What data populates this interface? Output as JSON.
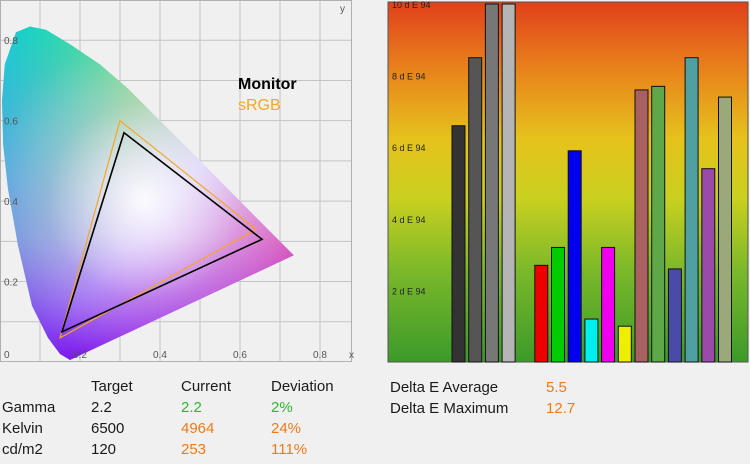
{
  "chart_data": [
    {
      "type": "chromaticity",
      "x_ticks": [
        "0.2",
        "0.4",
        "0.6",
        "0.8"
      ],
      "x_origin_label": "0",
      "x_axis_label": "x",
      "y_ticks": [
        "0.2",
        "0.4",
        "0.6",
        "0.8"
      ],
      "y_axis_label": "y",
      "xlim": [
        0,
        0.88
      ],
      "ylim": [
        0,
        0.9
      ],
      "grid": true,
      "legend": [
        {
          "name": "Monitor",
          "color": "#000000"
        },
        {
          "name": "sRGB",
          "color": "#f5a623"
        }
      ],
      "gamuts": {
        "Monitor": [
          [
            0.655,
            0.305
          ],
          [
            0.31,
            0.57
          ],
          [
            0.155,
            0.075
          ]
        ],
        "sRGB": [
          [
            0.64,
            0.33
          ],
          [
            0.3,
            0.6
          ],
          [
            0.15,
            0.06
          ]
        ]
      }
    },
    {
      "type": "bar",
      "y_ticks": [
        "2 d E 94",
        "4 d E 94",
        "6 d E 94",
        "8 d E 94",
        "10 d E 94"
      ],
      "ylim": [
        0,
        10
      ],
      "background": "gradient green-yellow-orange-red",
      "series": [
        {
          "value": 6.6,
          "color": "#333333"
        },
        {
          "value": 8.5,
          "color": "#555555"
        },
        {
          "value": 10,
          "color": "#777777"
        },
        {
          "value": 10,
          "color": "#b5b5b5"
        },
        {
          "value": 2.7,
          "color": "#ee0000"
        },
        {
          "value": 3.2,
          "color": "#00cc00"
        },
        {
          "value": 5.9,
          "color": "#0000ee"
        },
        {
          "value": 1.2,
          "color": "#00eeee"
        },
        {
          "value": 3.2,
          "color": "#ee00ee"
        },
        {
          "value": 1.0,
          "color": "#eeee00"
        },
        {
          "value": 7.6,
          "color": "#a86060"
        },
        {
          "value": 7.7,
          "color": "#5ea84a"
        },
        {
          "value": 2.6,
          "color": "#4a4aa8"
        },
        {
          "value": 8.5,
          "color": "#4fa0a0"
        },
        {
          "value": 5.4,
          "color": "#9a4aa8"
        },
        {
          "value": 7.4,
          "color": "#9aa87a"
        }
      ]
    }
  ],
  "calibration": {
    "headers": {
      "target": "Target",
      "current": "Current",
      "deviation": "Deviation"
    },
    "rows": [
      {
        "label": "Gamma",
        "target": "2.2",
        "current": "2.2",
        "deviation": "2%",
        "status": "good"
      },
      {
        "label": "Kelvin",
        "target": "6500",
        "current": "4964",
        "deviation": "24%",
        "status": "bad"
      },
      {
        "label": "cd/m2",
        "target": "120",
        "current": "253",
        "deviation": "111%",
        "status": "bad"
      }
    ]
  },
  "delta_e": {
    "average_label": "Delta E Average",
    "average_value": "5.5",
    "maximum_label": "Delta E Maximum",
    "maximum_value": "12.7"
  },
  "colors": {
    "good": "#2eb82e",
    "bad": "#ee7a1a"
  }
}
